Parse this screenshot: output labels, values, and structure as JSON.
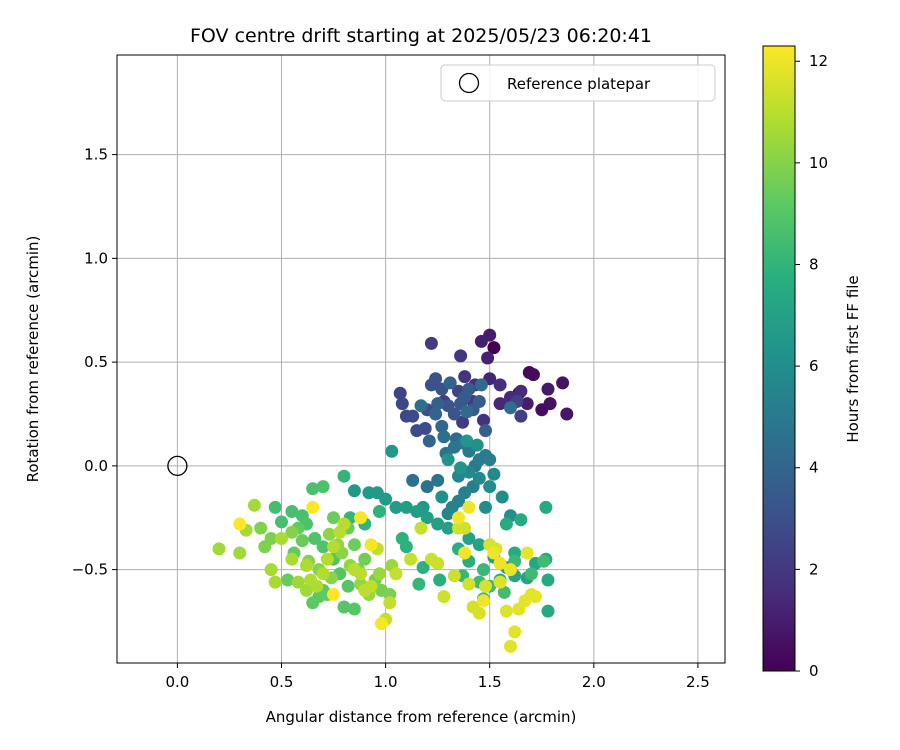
{
  "chart_data": {
    "type": "scatter",
    "title": "FOV centre drift starting at 2025/05/23 06:20:41",
    "xlabel": "Angular distance from reference (arcmin)",
    "ylabel": "Rotation from reference (arcmin)",
    "xlim": [
      -0.29,
      2.63
    ],
    "ylim": [
      -0.95,
      1.98
    ],
    "xticks": [
      0.0,
      0.5,
      1.0,
      1.5,
      2.0,
      2.5
    ],
    "xtick_labels": [
      "0.0",
      "0.5",
      "1.0",
      "1.5",
      "2.0",
      "2.5"
    ],
    "yticks": [
      -0.5,
      0.0,
      0.5,
      1.0,
      1.5
    ],
    "ytick_labels": [
      "−0.5",
      "0.0",
      "0.5",
      "1.0",
      "1.5"
    ],
    "grid": true,
    "legend": {
      "placement": "top-right",
      "entries": [
        "Reference platepar"
      ]
    },
    "reference_point": {
      "x": 0.0,
      "y": 0.0
    },
    "colorbar": {
      "label": "Hours from first FF file",
      "colormap": "viridis",
      "min": 0,
      "max": 12.3,
      "ticks": [
        0,
        2,
        4,
        6,
        8,
        10,
        12
      ],
      "tick_labels": [
        "0",
        "2",
        "4",
        "6",
        "8",
        "10",
        "12"
      ]
    },
    "series": [
      {
        "hours_range": [
          0,
          1
        ],
        "points": [
          [
            1.52,
            0.57
          ],
          [
            1.64,
            0.35
          ],
          [
            1.69,
            0.45
          ],
          [
            1.71,
            0.44
          ],
          [
            1.75,
            0.27
          ],
          [
            1.79,
            0.3
          ],
          [
            1.85,
            0.4
          ],
          [
            1.87,
            0.25
          ],
          [
            1.78,
            0.37
          ],
          [
            1.68,
            0.3
          ]
        ]
      },
      {
        "hours_range": [
          1,
          2.5
        ],
        "points": [
          [
            1.5,
            0.63
          ],
          [
            1.46,
            0.6
          ],
          [
            1.49,
            0.52
          ],
          [
            1.5,
            0.42
          ],
          [
            1.55,
            0.3
          ],
          [
            1.6,
            0.33
          ],
          [
            1.65,
            0.36
          ],
          [
            1.55,
            0.39
          ],
          [
            1.43,
            0.39
          ],
          [
            1.47,
            0.22
          ],
          [
            1.38,
            0.43
          ],
          [
            1.42,
            0.31
          ],
          [
            1.36,
            0.53
          ],
          [
            1.22,
            0.59
          ],
          [
            1.37,
            0.21
          ],
          [
            1.28,
            0.31
          ],
          [
            1.65,
            0.24
          ],
          [
            1.63,
            0.31
          ],
          [
            1.35,
            0.36
          ]
        ]
      },
      {
        "hours_range": [
          2.5,
          4.5
        ],
        "points": [
          [
            1.07,
            0.35
          ],
          [
            1.08,
            0.3
          ],
          [
            1.1,
            0.24
          ],
          [
            1.13,
            0.24
          ],
          [
            1.15,
            0.17
          ],
          [
            1.19,
            0.18
          ],
          [
            1.2,
            0.27
          ],
          [
            1.22,
            0.39
          ],
          [
            1.24,
            0.42
          ],
          [
            1.27,
            0.37
          ],
          [
            1.3,
            0.29
          ],
          [
            1.33,
            0.25
          ],
          [
            1.36,
            0.3
          ],
          [
            1.38,
            0.33
          ],
          [
            1.4,
            0.37
          ],
          [
            1.42,
            0.27
          ],
          [
            1.45,
            0.31
          ],
          [
            1.48,
            0.17
          ],
          [
            1.25,
            0.3
          ],
          [
            1.31,
            0.4
          ],
          [
            1.24,
            0.25
          ],
          [
            1.21,
            0.12
          ],
          [
            1.27,
            0.19
          ],
          [
            1.34,
            0.13
          ],
          [
            1.39,
            0.26
          ],
          [
            1.46,
            0.39
          ],
          [
            1.6,
            0.28
          ],
          [
            1.28,
            0.14
          ],
          [
            1.17,
            0.29
          ]
        ]
      },
      {
        "hours_range": [
          4.5,
          6.5
        ],
        "points": [
          [
            1.13,
            -0.07
          ],
          [
            1.2,
            -0.1
          ],
          [
            1.25,
            -0.07
          ],
          [
            1.29,
            0.06
          ],
          [
            1.33,
            0.09
          ],
          [
            1.37,
            0.11
          ],
          [
            1.4,
            0.07
          ],
          [
            1.43,
            0.0
          ],
          [
            1.45,
            0.03
          ],
          [
            1.48,
            0.05
          ],
          [
            1.5,
            0.03
          ],
          [
            1.42,
            -0.1
          ],
          [
            1.38,
            -0.13
          ],
          [
            1.35,
            -0.17
          ],
          [
            1.32,
            -0.2
          ],
          [
            1.3,
            -0.23
          ],
          [
            1.35,
            -0.05
          ],
          [
            1.4,
            -0.03
          ],
          [
            1.45,
            -0.06
          ],
          [
            1.52,
            -0.04
          ],
          [
            1.5,
            -0.1
          ],
          [
            1.48,
            -0.2
          ],
          [
            1.56,
            -0.15
          ],
          [
            1.6,
            -0.24
          ],
          [
            1.27,
            -0.15
          ],
          [
            1.44,
            0.1
          ],
          [
            1.3,
            0.03
          ],
          [
            1.36,
            -0.01
          ],
          [
            1.39,
            0.12
          ],
          [
            1.18,
            -0.2
          ]
        ]
      },
      {
        "hours_range": [
          6.5,
          8.5
        ],
        "points": [
          [
            1.03,
            0.07
          ],
          [
            0.85,
            -0.12
          ],
          [
            0.92,
            -0.13
          ],
          [
            0.96,
            -0.13
          ],
          [
            1.0,
            -0.16
          ],
          [
            1.05,
            -0.2
          ],
          [
            1.1,
            -0.2
          ],
          [
            1.15,
            -0.22
          ],
          [
            1.2,
            -0.25
          ],
          [
            1.25,
            -0.28
          ],
          [
            1.3,
            -0.3
          ],
          [
            1.4,
            -0.35
          ],
          [
            1.45,
            -0.38
          ],
          [
            1.52,
            -0.44
          ],
          [
            1.58,
            -0.49
          ],
          [
            1.62,
            -0.53
          ],
          [
            1.68,
            -0.54
          ],
          [
            1.72,
            -0.47
          ],
          [
            1.77,
            -0.45
          ],
          [
            1.78,
            -0.55
          ],
          [
            1.78,
            -0.7
          ],
          [
            1.77,
            -0.2
          ],
          [
            1.65,
            -0.26
          ],
          [
            1.58,
            -0.28
          ],
          [
            1.62,
            -0.42
          ],
          [
            1.55,
            -0.55
          ],
          [
            1.4,
            -0.46
          ],
          [
            1.35,
            -0.4
          ],
          [
            1.26,
            -0.55
          ],
          [
            1.18,
            -0.49
          ],
          [
            1.1,
            -0.39
          ],
          [
            1.08,
            -0.35
          ],
          [
            0.97,
            -0.22
          ],
          [
            0.9,
            -0.28
          ],
          [
            0.83,
            -0.25
          ],
          [
            0.8,
            -0.05
          ],
          [
            1.16,
            -0.57
          ],
          [
            1.37,
            -0.53
          ],
          [
            1.47,
            -0.5
          ],
          [
            1.62,
            -0.46
          ],
          [
            1.5,
            -0.58
          ],
          [
            1.45,
            -0.56
          ],
          [
            1.7,
            -0.52
          ],
          [
            1.76,
            -0.46
          ],
          [
            1.57,
            -0.61
          ],
          [
            1.47,
            -0.64
          ]
        ]
      },
      {
        "hours_range": [
          8.5,
          10.5
        ],
        "points": [
          [
            0.47,
            -0.2
          ],
          [
            0.5,
            -0.27
          ],
          [
            0.55,
            -0.22
          ],
          [
            0.6,
            -0.24
          ],
          [
            0.65,
            -0.11
          ],
          [
            0.7,
            -0.1
          ],
          [
            0.62,
            -0.28
          ],
          [
            0.66,
            -0.35
          ],
          [
            0.7,
            -0.39
          ],
          [
            0.75,
            -0.45
          ],
          [
            0.78,
            -0.52
          ],
          [
            0.82,
            -0.58
          ],
          [
            0.8,
            -0.68
          ],
          [
            0.85,
            -0.69
          ],
          [
            0.7,
            -0.6
          ],
          [
            0.65,
            -0.66
          ],
          [
            0.68,
            -0.63
          ],
          [
            0.72,
            -0.62
          ],
          [
            0.58,
            -0.3
          ],
          [
            0.56,
            -0.42
          ],
          [
            0.53,
            -0.55
          ],
          [
            0.6,
            -0.36
          ],
          [
            0.75,
            -0.25
          ],
          [
            0.82,
            -0.3
          ],
          [
            0.85,
            -0.38
          ],
          [
            0.9,
            -0.45
          ],
          [
            0.87,
            -0.5
          ],
          [
            0.95,
            -0.55
          ],
          [
            0.98,
            -0.6
          ],
          [
            1.02,
            -0.62
          ],
          [
            0.45,
            -0.35
          ],
          [
            0.42,
            -0.39
          ],
          [
            0.4,
            -0.3
          ],
          [
            0.55,
            -0.32
          ],
          [
            0.63,
            -0.46
          ],
          [
            0.68,
            -0.5
          ],
          [
            0.74,
            -0.54
          ],
          [
            0.79,
            -0.42
          ],
          [
            0.73,
            -0.33
          ],
          [
            0.77,
            -0.38
          ],
          [
            0.83,
            -0.48
          ],
          [
            0.88,
            -0.57
          ],
          [
            0.92,
            -0.62
          ],
          [
            0.97,
            -0.52
          ],
          [
            1.03,
            -0.48
          ],
          [
            0.58,
            -0.56
          ],
          [
            0.62,
            -0.6
          ]
        ]
      },
      {
        "hours_range": [
          10.5,
          12.3
        ],
        "points": [
          [
            0.2,
            -0.4
          ],
          [
            0.3,
            -0.42
          ],
          [
            0.33,
            -0.31
          ],
          [
            0.37,
            -0.19
          ],
          [
            0.45,
            -0.5
          ],
          [
            0.47,
            -0.56
          ],
          [
            0.5,
            -0.35
          ],
          [
            0.55,
            -0.45
          ],
          [
            0.62,
            -0.48
          ],
          [
            0.64,
            -0.55
          ],
          [
            0.67,
            -0.58
          ],
          [
            0.7,
            -0.52
          ],
          [
            0.72,
            -0.45
          ],
          [
            0.75,
            -0.39
          ],
          [
            0.78,
            -0.32
          ],
          [
            0.8,
            -0.28
          ],
          [
            0.85,
            -0.5
          ],
          [
            0.88,
            -0.52
          ],
          [
            0.9,
            -0.6
          ],
          [
            0.93,
            -0.58
          ],
          [
            0.96,
            -0.4
          ],
          [
            1.0,
            -0.74
          ],
          [
            1.02,
            -0.66
          ],
          [
            1.05,
            -0.52
          ],
          [
            1.12,
            -0.45
          ],
          [
            1.17,
            -0.3
          ],
          [
            1.22,
            -0.45
          ],
          [
            1.25,
            -0.47
          ],
          [
            1.28,
            -0.63
          ],
          [
            1.33,
            -0.53
          ],
          [
            1.35,
            -0.3
          ],
          [
            1.38,
            -0.3
          ],
          [
            1.4,
            -0.57
          ],
          [
            1.42,
            -0.68
          ],
          [
            1.45,
            -0.71
          ],
          [
            1.48,
            -0.58
          ],
          [
            1.5,
            -0.38
          ],
          [
            1.53,
            -0.4
          ],
          [
            1.55,
            -0.56
          ],
          [
            1.58,
            -0.7
          ],
          [
            1.6,
            -0.87
          ],
          [
            1.62,
            -0.8
          ],
          [
            1.64,
            -0.69
          ],
          [
            1.67,
            -0.65
          ],
          [
            1.7,
            -0.62
          ],
          [
            1.72,
            -0.63
          ],
          [
            1.68,
            -0.42
          ],
          [
            1.6,
            -0.5
          ],
          [
            1.55,
            -0.47
          ],
          [
            1.52,
            -0.42
          ],
          [
            1.4,
            -0.2
          ],
          [
            1.47,
            -0.65
          ],
          [
            1.38,
            -0.42
          ],
          [
            1.35,
            -0.25
          ],
          [
            0.93,
            -0.38
          ],
          [
            0.88,
            -0.25
          ],
          [
            0.98,
            -0.76
          ],
          [
            0.3,
            -0.28
          ],
          [
            0.65,
            -0.2
          ],
          [
            0.75,
            -0.62
          ]
        ]
      }
    ]
  }
}
